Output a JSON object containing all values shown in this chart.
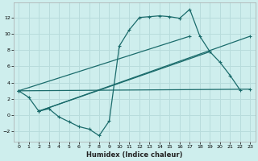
{
  "xlabel": "Humidex (Indice chaleur)",
  "bg_color": "#ceeeed",
  "grid_color": "#b8dcdc",
  "line_color": "#1a6b6b",
  "xlim": [
    -0.5,
    23.5
  ],
  "ylim": [
    -3.2,
    13.8
  ],
  "xticks": [
    0,
    1,
    2,
    3,
    4,
    5,
    6,
    7,
    8,
    9,
    10,
    11,
    12,
    13,
    14,
    15,
    16,
    17,
    18,
    19,
    20,
    21,
    22,
    23
  ],
  "yticks": [
    -2,
    0,
    2,
    4,
    6,
    8,
    10,
    12
  ],
  "curve1_x": [
    0,
    1,
    2,
    3,
    4,
    5,
    6,
    7,
    8,
    9,
    10,
    11,
    12,
    13,
    14,
    15,
    16,
    17,
    18,
    19,
    20,
    21,
    22
  ],
  "curve1_y": [
    3.0,
    2.2,
    0.5,
    0.8,
    -0.2,
    -0.8,
    -1.4,
    -1.7,
    -2.5,
    -0.7,
    8.5,
    10.5,
    12.0,
    12.1,
    12.2,
    12.1,
    11.9,
    13.0,
    9.7,
    7.8,
    6.5,
    4.9,
    3.1
  ],
  "line2_x": [
    0,
    23
  ],
  "line2_y": [
    3.0,
    3.2
  ],
  "line3_x": [
    2,
    19
  ],
  "line3_y": [
    0.5,
    7.8
  ],
  "line4_x": [
    2,
    23
  ],
  "line4_y": [
    0.5,
    9.7
  ],
  "line5_x": [
    0,
    17
  ],
  "line5_y": [
    3.0,
    9.7
  ]
}
